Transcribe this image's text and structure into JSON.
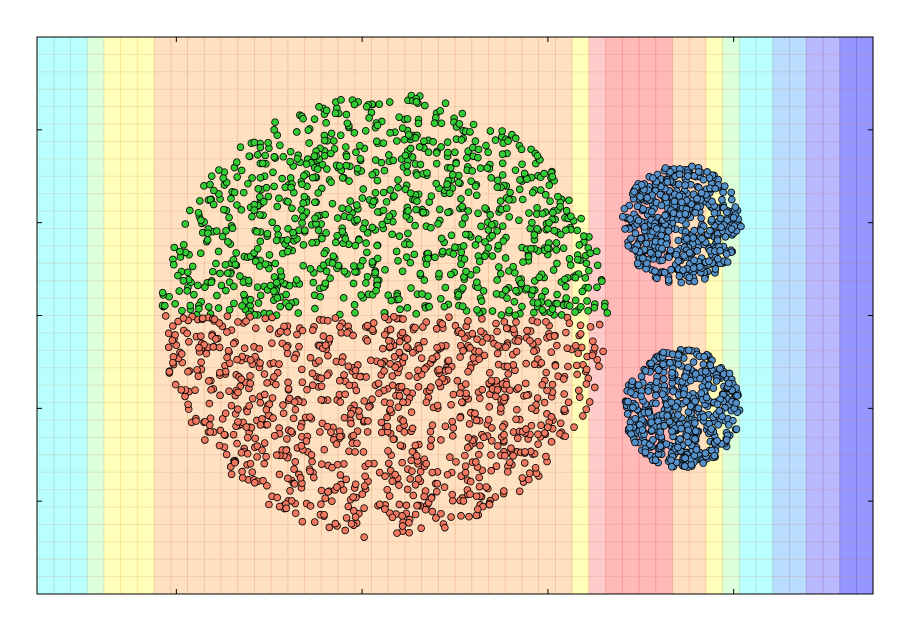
{
  "chart_data": {
    "type": "scatter",
    "title": "",
    "xlabel": "",
    "ylabel": "",
    "xlim": [
      -1.5,
      3.0
    ],
    "ylim": [
      -1.5,
      1.5
    ],
    "x_tick_values": [
      -0.75,
      0.25,
      1.25,
      2.25
    ],
    "y_tick_values": [
      1.0,
      0.5,
      0.0,
      -0.5,
      -1.0
    ],
    "grid": false,
    "legend": "none",
    "background": {
      "type": "heatmap",
      "colormap": "jet",
      "opacity": 0.2,
      "column_colors": [
        "#80ffff",
        "#80ffff",
        "#80ffff",
        "#c0ffc0",
        "#ffff80",
        "#ffff80",
        "#ffff80",
        "#ffc890",
        "#ffc890",
        "#ffc890",
        "#ffc890",
        "#ffc890",
        "#ffc890",
        "#ffc890",
        "#ffc890",
        "#ffc890",
        "#ffc890",
        "#ffc890",
        "#ffc890",
        "#ffc890",
        "#ffc890",
        "#ffc890",
        "#ffc890",
        "#ffc890",
        "#ffc890",
        "#ffc890",
        "#ffc890",
        "#ffc890",
        "#ffc890",
        "#ffc890",
        "#ffc890",
        "#ffc890",
        "#ffff80",
        "#ffa0a0",
        "#ff8080",
        "#ff8080",
        "#ff8080",
        "#ff8080",
        "#ffc890",
        "#ffc890",
        "#ffff80",
        "#c0ffc0",
        "#80ffff",
        "#80ffff",
        "#80c0ff",
        "#80c0ff",
        "#8080ff",
        "#8080ff",
        "#4040ff",
        "#4040ff"
      ]
    },
    "series": [
      {
        "shape": "upper half-disk",
        "center": [
          0.37,
          0.0
        ],
        "radius": 1.2,
        "ny": [
          0.0,
          1.2
        ],
        "count": 1000,
        "color": "#33cc33"
      },
      {
        "shape": "lower half-disk",
        "center": [
          0.37,
          0.0
        ],
        "radius": 1.2,
        "y_range": [
          -1.2,
          0.0
        ],
        "count": 1000,
        "color": "#f07860"
      },
      {
        "shape": "disk",
        "center": [
          1.97,
          0.49
        ],
        "radius": 0.32,
        "count": 500,
        "color": "#5590c8"
      },
      {
        "shape": "disk",
        "center": [
          1.97,
          -0.5
        ],
        "radius": 0.32,
        "count": 500,
        "color": "#5590c8"
      }
    ],
    "marker": {
      "edge_color": "#000000"
    }
  }
}
